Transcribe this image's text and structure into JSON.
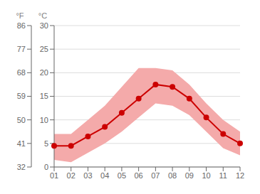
{
  "chart_data": {
    "type": "line",
    "categories": [
      "01",
      "02",
      "03",
      "04",
      "05",
      "06",
      "07",
      "08",
      "09",
      "10",
      "11",
      "12"
    ],
    "series": [
      {
        "type": "area",
        "color": "#f4aaaa",
        "low": [
          1.5,
          1.0,
          3.0,
          5.0,
          7.5,
          10.5,
          13.5,
          13.0,
          11.0,
          7.5,
          4.0,
          2.5
        ],
        "high": [
          7.0,
          7.0,
          10.0,
          13.0,
          17.0,
          21.0,
          21.0,
          20.5,
          17.5,
          13.5,
          10.0,
          7.5
        ]
      },
      {
        "type": "line",
        "color": "#cc0000",
        "marker": "o",
        "values": [
          4.5,
          4.5,
          6.5,
          8.5,
          11.5,
          14.5,
          17.5,
          17.0,
          14.5,
          10.5,
          7.0,
          5.0
        ]
      }
    ],
    "ylim": [
      0,
      30
    ],
    "yticks": [
      0,
      5,
      10,
      15,
      20,
      25,
      30
    ],
    "y2lim": [
      32,
      86
    ],
    "y2ticks": [
      32,
      41,
      50,
      59,
      68,
      77,
      86
    ],
    "y_label": "°C",
    "y2_label": "°F",
    "grid": true
  }
}
